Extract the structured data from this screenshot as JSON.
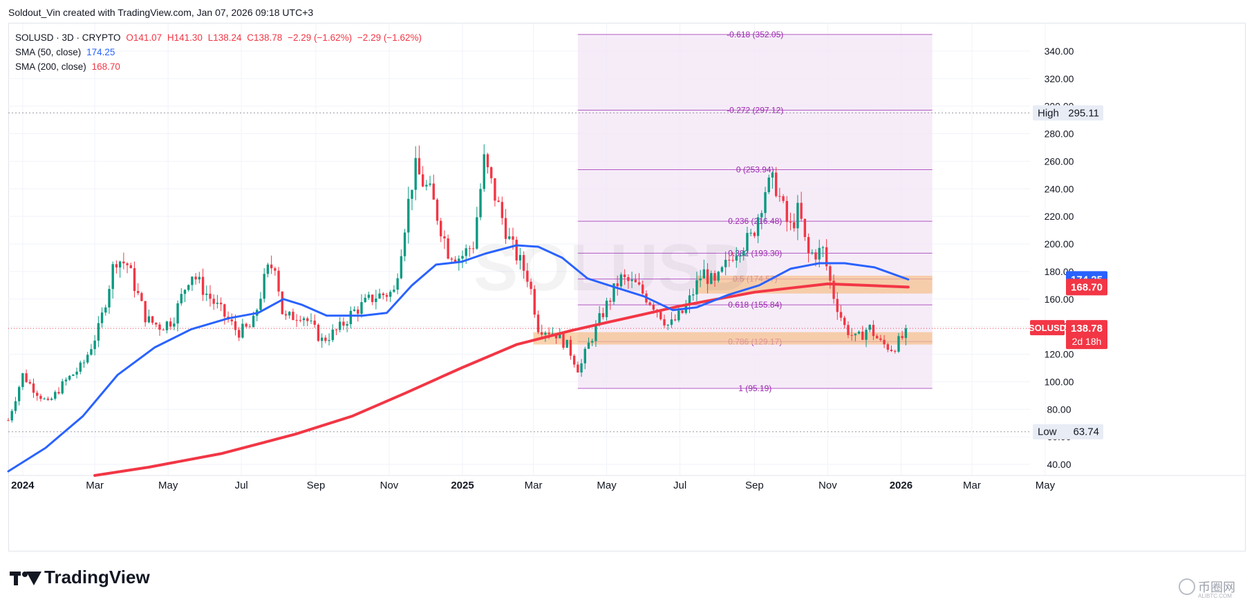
{
  "header": {
    "credit": "Soldout_Vin created with TradingView.com, Jan 07, 2026 09:18 UTC+3"
  },
  "legend": {
    "symbol": "SOLUSD · 3D · CRYPTO",
    "open": "O141.07",
    "high": "H141.30",
    "low": "L138.24",
    "close": "C138.78",
    "change1": "−2.29 (−1.62%)",
    "change2": "−2.29 (−1.62%)",
    "sma50_label": "SMA (50, close)",
    "sma50_value": "174.25",
    "sma200_label": "SMA (200, close)",
    "sma200_value": "168.70"
  },
  "chart_data": {
    "type": "candlestick",
    "symbol": "SOLUSD",
    "ylim": [
      32,
      360
    ],
    "y_ticks": [
      40,
      60,
      80,
      100,
      120,
      140,
      160,
      180,
      200,
      220,
      240,
      260,
      280,
      300,
      320,
      340
    ],
    "y_tick_labels": [
      "40.00",
      "60.00",
      "80.00",
      "100.00",
      "120.00",
      "140.00",
      "160.00",
      "180.00",
      "200.00",
      "220.00",
      "240.00",
      "260.00",
      "280.00",
      "300.00",
      "320.00",
      "340.00"
    ],
    "x_start": "2023-12-20",
    "x_end": "2026-05-20",
    "x_ticks": [
      {
        "date": "2024-01-01",
        "label": "2024",
        "bold": true
      },
      {
        "date": "2024-03-01",
        "label": "Mar"
      },
      {
        "date": "2024-05-01",
        "label": "May"
      },
      {
        "date": "2024-07-01",
        "label": "Jul"
      },
      {
        "date": "2024-09-01",
        "label": "Sep"
      },
      {
        "date": "2024-11-01",
        "label": "Nov"
      },
      {
        "date": "2025-01-01",
        "label": "2025",
        "bold": true
      },
      {
        "date": "2025-03-01",
        "label": "Mar"
      },
      {
        "date": "2025-05-01",
        "label": "May"
      },
      {
        "date": "2025-07-01",
        "label": "Jul"
      },
      {
        "date": "2025-09-01",
        "label": "Sep"
      },
      {
        "date": "2025-11-01",
        "label": "Nov"
      },
      {
        "date": "2026-01-01",
        "label": "2026",
        "bold": true
      },
      {
        "date": "2026-03-01",
        "label": "Mar"
      },
      {
        "date": "2026-05-01",
        "label": "May"
      }
    ],
    "price_path": [
      [
        "2023-12-20",
        72
      ],
      [
        "2024-01-01",
        105
      ],
      [
        "2024-01-10",
        95
      ],
      [
        "2024-01-22",
        84
      ],
      [
        "2024-02-05",
        100
      ],
      [
        "2024-02-20",
        112
      ],
      [
        "2024-03-05",
        140
      ],
      [
        "2024-03-18",
        190
      ],
      [
        "2024-03-28",
        185
      ],
      [
        "2024-04-13",
        145
      ],
      [
        "2024-04-25",
        140
      ],
      [
        "2024-05-05",
        145
      ],
      [
        "2024-05-20",
        180
      ],
      [
        "2024-06-01",
        165
      ],
      [
        "2024-06-15",
        150
      ],
      [
        "2024-06-28",
        136
      ],
      [
        "2024-07-10",
        140
      ],
      [
        "2024-07-22",
        180
      ],
      [
        "2024-07-29",
        186
      ],
      [
        "2024-08-05",
        145
      ],
      [
        "2024-08-20",
        150
      ],
      [
        "2024-09-06",
        130
      ],
      [
        "2024-09-20",
        138
      ],
      [
        "2024-10-01",
        150
      ],
      [
        "2024-10-20",
        162
      ],
      [
        "2024-11-05",
        165
      ],
      [
        "2024-11-15",
        220
      ],
      [
        "2024-11-22",
        255
      ],
      [
        "2024-12-06",
        235
      ],
      [
        "2024-12-20",
        195
      ],
      [
        "2024-12-30",
        190
      ],
      [
        "2025-01-10",
        200
      ],
      [
        "2025-01-19",
        260
      ],
      [
        "2025-01-28",
        235
      ],
      [
        "2025-02-10",
        200
      ],
      [
        "2025-02-25",
        175
      ],
      [
        "2025-03-05",
        140
      ],
      [
        "2025-03-20",
        135
      ],
      [
        "2025-03-30",
        125
      ],
      [
        "2025-04-08",
        108
      ],
      [
        "2025-04-15",
        125
      ],
      [
        "2025-04-25",
        145
      ],
      [
        "2025-05-12",
        175
      ],
      [
        "2025-05-25",
        170
      ],
      [
        "2025-06-10",
        155
      ],
      [
        "2025-06-22",
        140
      ],
      [
        "2025-07-05",
        152
      ],
      [
        "2025-07-20",
        180
      ],
      [
        "2025-07-30",
        170
      ],
      [
        "2025-08-15",
        195
      ],
      [
        "2025-08-30",
        205
      ],
      [
        "2025-09-10",
        240
      ],
      [
        "2025-09-18",
        245
      ],
      [
        "2025-09-30",
        210
      ],
      [
        "2025-10-08",
        225
      ],
      [
        "2025-10-15",
        192
      ],
      [
        "2025-10-28",
        195
      ],
      [
        "2025-11-05",
        165
      ],
      [
        "2025-11-15",
        140
      ],
      [
        "2025-11-25",
        130
      ],
      [
        "2025-12-05",
        140
      ],
      [
        "2025-12-15",
        128
      ],
      [
        "2025-12-25",
        124
      ],
      [
        "2026-01-02",
        132
      ],
      [
        "2026-01-07",
        138.78
      ]
    ],
    "sma50": [
      [
        "2023-12-20",
        35
      ],
      [
        "2024-01-20",
        52
      ],
      [
        "2024-02-20",
        75
      ],
      [
        "2024-03-20",
        105
      ],
      [
        "2024-04-20",
        125
      ],
      [
        "2024-05-20",
        138
      ],
      [
        "2024-06-20",
        146
      ],
      [
        "2024-07-15",
        150
      ],
      [
        "2024-08-05",
        160
      ],
      [
        "2024-08-20",
        156
      ],
      [
        "2024-09-10",
        148
      ],
      [
        "2024-10-10",
        148
      ],
      [
        "2024-10-30",
        150
      ],
      [
        "2024-11-20",
        170
      ],
      [
        "2024-12-10",
        185
      ],
      [
        "2024-12-31",
        187
      ],
      [
        "2025-01-20",
        193
      ],
      [
        "2025-02-15",
        199
      ],
      [
        "2025-03-05",
        198
      ],
      [
        "2025-03-25",
        190
      ],
      [
        "2025-04-15",
        175
      ],
      [
        "2025-05-10",
        168
      ],
      [
        "2025-06-01",
        162
      ],
      [
        "2025-06-25",
        152
      ],
      [
        "2025-07-15",
        154
      ],
      [
        "2025-08-10",
        163
      ],
      [
        "2025-09-05",
        170
      ],
      [
        "2025-10-01",
        182
      ],
      [
        "2025-10-25",
        186
      ],
      [
        "2025-11-15",
        186
      ],
      [
        "2025-12-10",
        183
      ],
      [
        "2026-01-07",
        174.25
      ]
    ],
    "sma200": [
      [
        "2024-03-01",
        32
      ],
      [
        "2024-04-15",
        38
      ],
      [
        "2024-06-15",
        48
      ],
      [
        "2024-08-15",
        62
      ],
      [
        "2024-10-01",
        75
      ],
      [
        "2024-11-15",
        92
      ],
      [
        "2024-12-31",
        110
      ],
      [
        "2025-02-15",
        127
      ],
      [
        "2025-04-01",
        137
      ],
      [
        "2025-05-01",
        143
      ],
      [
        "2025-06-01",
        149
      ],
      [
        "2025-07-01",
        155
      ],
      [
        "2025-08-01",
        160
      ],
      [
        "2025-09-01",
        165
      ],
      [
        "2025-10-01",
        168
      ],
      [
        "2025-11-01",
        171
      ],
      [
        "2025-12-01",
        170
      ],
      [
        "2026-01-07",
        168.7
      ]
    ],
    "fibonacci": {
      "x_start": "2025-04-07",
      "x_end": "2026-01-27",
      "levels": [
        {
          "ratio": "-0.618",
          "price": 352.05,
          "label": "-0.618 (352.05)"
        },
        {
          "ratio": "-0.272",
          "price": 297.12,
          "label": "-0.272 (297.12)"
        },
        {
          "ratio": "0",
          "price": 253.94,
          "label": "0 (253.94)"
        },
        {
          "ratio": "0.236",
          "price": 216.48,
          "label": "0.236 (216.48)"
        },
        {
          "ratio": "0.382",
          "price": 193.3,
          "label": "0.382 (193.30)"
        },
        {
          "ratio": "0.5",
          "price": 174.57,
          "label": "0.5 (174.57)"
        },
        {
          "ratio": "0.618",
          "price": 155.84,
          "label": "0.618 (155.84)"
        },
        {
          "ratio": "0.786",
          "price": 129.17,
          "label": "0.786 (129.17)"
        },
        {
          "ratio": "1",
          "price": 95.19,
          "label": "1 (95.19)"
        }
      ]
    },
    "zones": [
      {
        "x_start": "2025-03-01",
        "x_end": "2026-01-27",
        "y_low": 127,
        "y_high": 136,
        "color": "#f6c08a"
      },
      {
        "x_start": "2025-07-15",
        "x_end": "2026-01-27",
        "y_low": 164,
        "y_high": 177,
        "color": "#f6c08a"
      }
    ],
    "high": {
      "label": "High",
      "value": "295.11",
      "price": 295.11
    },
    "low": {
      "label": "Low",
      "value": "63.74",
      "price": 63.74
    },
    "price_tags": [
      {
        "value": "174.25",
        "price": 174.25,
        "color": "#2962ff"
      },
      {
        "value": "168.70",
        "price": 168.7,
        "color": "#f23645"
      }
    ],
    "current": {
      "symbol": "SOLUSD",
      "value": "138.78",
      "countdown": "2d 18h",
      "price": 138.78
    },
    "watermark": "SOLUSD",
    "colors": {
      "up": "#089981",
      "down": "#f23645",
      "sma50": "#2962ff",
      "sma200": "#f23645",
      "fib": "#9c27b0",
      "fib_fill": "#f3e5f5"
    }
  },
  "footer": {
    "brand": "TradingView",
    "watermark_site": "币圈网",
    "watermark_sub": "ALIBTC.COM"
  }
}
